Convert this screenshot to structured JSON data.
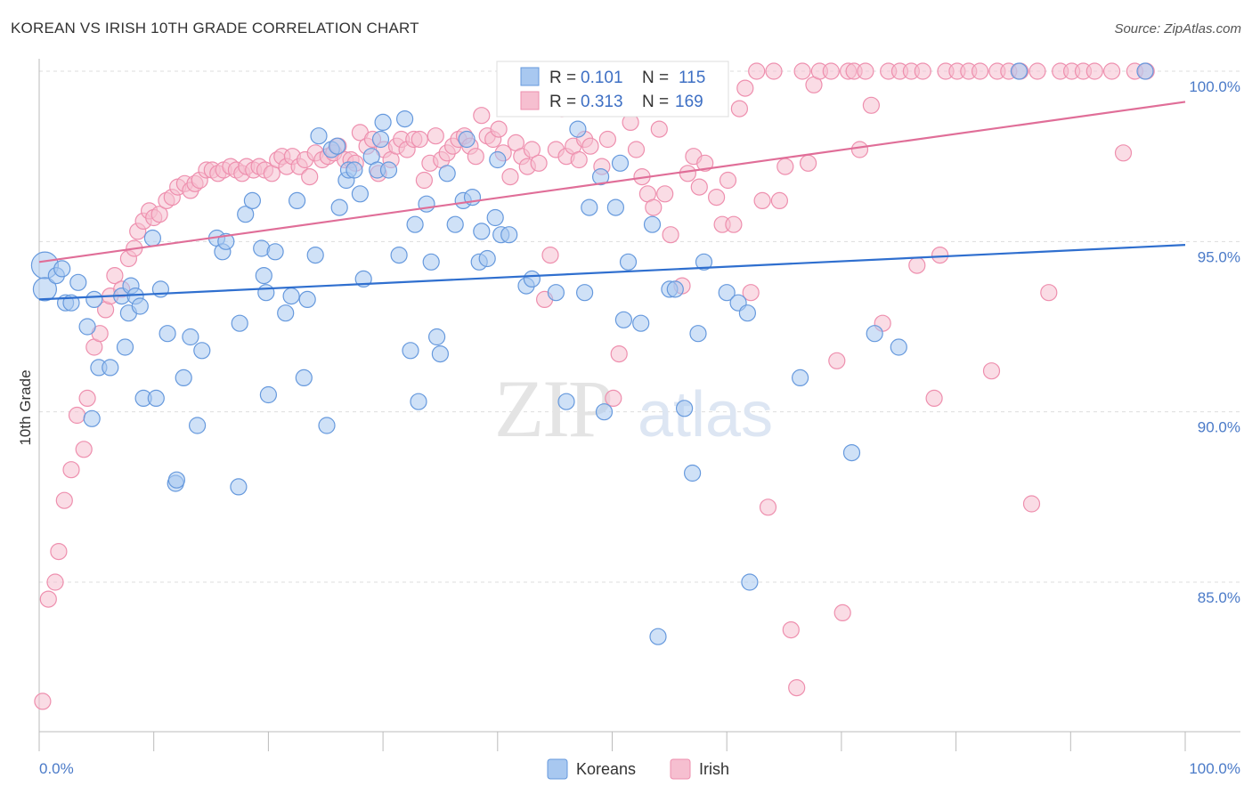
{
  "title": "KOREAN VS IRISH 10TH GRADE CORRELATION CHART",
  "source": "Source: ZipAtlas.com",
  "watermark": {
    "zip": "ZIP",
    "atlas": "atlas"
  },
  "colors": {
    "koreans_fill": "#a8c8f0",
    "koreans_stroke": "#6699dd",
    "koreans_line": "#2f6fcf",
    "irish_fill": "#f6bfd0",
    "irish_stroke": "#ee8fae",
    "irish_line": "#e06e98",
    "tick_blue": "#4a7ac8",
    "grid": "#dddddd"
  },
  "legend_box": {
    "rows": [
      {
        "r_label": "R =",
        "r_value": "0.101",
        "n_label": "N =",
        "n_value": "115"
      },
      {
        "r_label": "R =",
        "r_value": "0.313",
        "n_label": "N =",
        "n_value": "169"
      }
    ]
  },
  "chart_data": {
    "type": "scatter",
    "xlabel": "",
    "ylabel": "10th Grade",
    "xlim": [
      0,
      100
    ],
    "ylim": [
      80.5,
      100.8
    ],
    "x_tick_labels": [
      "0.0%",
      "100.0%"
    ],
    "y_ticks": [
      85,
      90,
      95,
      100
    ],
    "y_tick_labels": [
      "85.0%",
      "90.0%",
      "95.0%",
      "100.0%"
    ],
    "grid": true,
    "legend": "bottom-center",
    "series": [
      {
        "name": "Koreans",
        "R": 0.101,
        "N": 115,
        "trend": {
          "x": [
            0,
            100
          ],
          "y": [
            93.3,
            94.9
          ]
        },
        "points": [
          [
            0.5,
            94.3
          ],
          [
            0.5,
            93.6
          ],
          [
            1.5,
            94.0
          ],
          [
            2,
            94.2
          ],
          [
            2.3,
            93.2
          ],
          [
            2.8,
            93.2
          ],
          [
            3.4,
            93.8
          ],
          [
            4.2,
            92.5
          ],
          [
            4.6,
            89.8
          ],
          [
            4.8,
            93.3
          ],
          [
            5.2,
            91.3
          ],
          [
            6.2,
            91.3
          ],
          [
            7.2,
            93.4
          ],
          [
            7.5,
            91.9
          ],
          [
            7.8,
            92.9
          ],
          [
            8,
            93.7
          ],
          [
            8.4,
            93.4
          ],
          [
            8.8,
            93.1
          ],
          [
            9.1,
            90.4
          ],
          [
            9.9,
            95.1
          ],
          [
            10.2,
            90.4
          ],
          [
            10.6,
            93.6
          ],
          [
            11.2,
            92.3
          ],
          [
            11.9,
            87.9
          ],
          [
            12,
            88.0
          ],
          [
            12.6,
            91.0
          ],
          [
            13.2,
            92.2
          ],
          [
            13.8,
            89.6
          ],
          [
            14.2,
            91.8
          ],
          [
            15.5,
            95.1
          ],
          [
            16.0,
            94.7
          ],
          [
            16.3,
            95.0
          ],
          [
            17.4,
            87.8
          ],
          [
            17.5,
            92.6
          ],
          [
            18.0,
            95.8
          ],
          [
            18.6,
            96.2
          ],
          [
            19.4,
            94.8
          ],
          [
            19.6,
            94.0
          ],
          [
            19.8,
            93.5
          ],
          [
            20,
            90.5
          ],
          [
            20.6,
            94.7
          ],
          [
            21.5,
            92.9
          ],
          [
            22.0,
            93.4
          ],
          [
            22.5,
            96.2
          ],
          [
            23.1,
            91.0
          ],
          [
            23.4,
            93.3
          ],
          [
            24.1,
            94.6
          ],
          [
            24.4,
            98.1
          ],
          [
            25.1,
            89.6
          ],
          [
            25.5,
            97.7
          ],
          [
            26,
            97.8
          ],
          [
            26.2,
            96.0
          ],
          [
            26.8,
            96.8
          ],
          [
            27.0,
            97.1
          ],
          [
            27.5,
            97.1
          ],
          [
            28.0,
            96.4
          ],
          [
            28.3,
            93.9
          ],
          [
            29.0,
            97.5
          ],
          [
            29.5,
            97.1
          ],
          [
            29.8,
            98.0
          ],
          [
            30.0,
            98.5
          ],
          [
            30.5,
            97.1
          ],
          [
            31.4,
            94.6
          ],
          [
            31.9,
            98.6
          ],
          [
            32.4,
            91.8
          ],
          [
            32.8,
            95.5
          ],
          [
            33.1,
            90.3
          ],
          [
            33.8,
            96.1
          ],
          [
            34.2,
            94.4
          ],
          [
            34.7,
            92.2
          ],
          [
            35.0,
            91.7
          ],
          [
            35.6,
            97.0
          ],
          [
            36.3,
            95.5
          ],
          [
            37.0,
            96.2
          ],
          [
            37.3,
            98.0
          ],
          [
            37.8,
            96.3
          ],
          [
            38.4,
            94.4
          ],
          [
            38.6,
            95.3
          ],
          [
            39.1,
            94.5
          ],
          [
            39.8,
            95.7
          ],
          [
            40.0,
            97.4
          ],
          [
            40.3,
            95.2
          ],
          [
            41.0,
            95.2
          ],
          [
            42.5,
            93.7
          ],
          [
            43.0,
            93.9
          ],
          [
            45.1,
            93.5
          ],
          [
            46.0,
            90.3
          ],
          [
            47.0,
            98.3
          ],
          [
            47.6,
            93.5
          ],
          [
            48.0,
            96.0
          ],
          [
            49.0,
            96.9
          ],
          [
            49.3,
            90.0
          ],
          [
            50.3,
            96.0
          ],
          [
            50.7,
            97.3
          ],
          [
            51.0,
            92.7
          ],
          [
            51.4,
            94.4
          ],
          [
            52.5,
            92.6
          ],
          [
            53.5,
            95.5
          ],
          [
            54.0,
            83.4
          ],
          [
            55,
            93.6
          ],
          [
            55.5,
            93.6
          ],
          [
            56.3,
            90.1
          ],
          [
            57,
            88.2
          ],
          [
            57.5,
            92.3
          ],
          [
            58,
            94.4
          ],
          [
            60,
            93.5
          ],
          [
            61,
            93.2
          ],
          [
            61.8,
            92.9
          ],
          [
            62.0,
            85.0
          ],
          [
            66.4,
            91.0
          ],
          [
            70.9,
            88.8
          ],
          [
            72.9,
            92.3
          ],
          [
            75.0,
            91.9
          ],
          [
            85.5,
            100.0
          ],
          [
            96.5,
            100.0
          ]
        ]
      },
      {
        "name": "Irish",
        "R": 0.313,
        "N": 169,
        "trend": {
          "x": [
            0,
            100
          ],
          "y": [
            94.4,
            99.1
          ]
        },
        "points": [
          [
            0.3,
            81.5
          ],
          [
            0.8,
            84.5
          ],
          [
            1.4,
            85.0
          ],
          [
            1.7,
            85.9
          ],
          [
            2.2,
            87.4
          ],
          [
            2.8,
            88.3
          ],
          [
            3.3,
            89.9
          ],
          [
            3.9,
            88.9
          ],
          [
            4.2,
            90.4
          ],
          [
            4.8,
            91.9
          ],
          [
            5.3,
            92.3
          ],
          [
            5.8,
            93.0
          ],
          [
            6.2,
            93.4
          ],
          [
            6.6,
            94.0
          ],
          [
            7.2,
            93.6
          ],
          [
            7.8,
            94.5
          ],
          [
            8.3,
            94.8
          ],
          [
            8.6,
            95.3
          ],
          [
            9.1,
            95.6
          ],
          [
            9.6,
            95.9
          ],
          [
            10.0,
            95.7
          ],
          [
            10.5,
            95.8
          ],
          [
            11.1,
            96.2
          ],
          [
            11.6,
            96.3
          ],
          [
            12.1,
            96.6
          ],
          [
            12.7,
            96.7
          ],
          [
            13.2,
            96.5
          ],
          [
            13.6,
            96.7
          ],
          [
            14.0,
            96.8
          ],
          [
            14.6,
            97.1
          ],
          [
            15.1,
            97.1
          ],
          [
            15.6,
            97.0
          ],
          [
            16.1,
            97.1
          ],
          [
            16.7,
            97.2
          ],
          [
            17.2,
            97.1
          ],
          [
            17.7,
            97.0
          ],
          [
            18.1,
            97.2
          ],
          [
            18.7,
            97.1
          ],
          [
            19.2,
            97.2
          ],
          [
            19.7,
            97.1
          ],
          [
            20.3,
            97.0
          ],
          [
            20.8,
            97.4
          ],
          [
            21.2,
            97.5
          ],
          [
            21.6,
            97.2
          ],
          [
            22.1,
            97.5
          ],
          [
            22.7,
            97.2
          ],
          [
            23.2,
            97.4
          ],
          [
            23.6,
            96.9
          ],
          [
            24.1,
            97.6
          ],
          [
            24.7,
            97.4
          ],
          [
            25.2,
            97.5
          ],
          [
            25.7,
            97.6
          ],
          [
            26.1,
            97.8
          ],
          [
            26.7,
            97.4
          ],
          [
            27.2,
            97.4
          ],
          [
            27.6,
            97.3
          ],
          [
            28.0,
            98.2
          ],
          [
            28.6,
            97.8
          ],
          [
            29.1,
            98.0
          ],
          [
            29.6,
            97.0
          ],
          [
            30.1,
            97.7
          ],
          [
            30.7,
            97.4
          ],
          [
            31.2,
            97.8
          ],
          [
            31.6,
            98.0
          ],
          [
            32.1,
            97.7
          ],
          [
            32.7,
            98.0
          ],
          [
            33.2,
            98.0
          ],
          [
            33.6,
            96.8
          ],
          [
            34.1,
            97.3
          ],
          [
            34.6,
            98.1
          ],
          [
            35.1,
            97.4
          ],
          [
            35.6,
            97.6
          ],
          [
            36.1,
            97.8
          ],
          [
            36.6,
            98.0
          ],
          [
            37.1,
            98.1
          ],
          [
            37.6,
            97.8
          ],
          [
            38.1,
            97.5
          ],
          [
            38.6,
            98.7
          ],
          [
            39.1,
            98.1
          ],
          [
            39.6,
            98.0
          ],
          [
            40.1,
            98.3
          ],
          [
            40.5,
            97.6
          ],
          [
            41.1,
            96.9
          ],
          [
            41.6,
            97.9
          ],
          [
            42.1,
            97.5
          ],
          [
            42.6,
            97.2
          ],
          [
            43.0,
            97.7
          ],
          [
            43.6,
            97.3
          ],
          [
            44.1,
            93.3
          ],
          [
            44.6,
            94.6
          ],
          [
            45.1,
            97.7
          ],
          [
            45.6,
            98.9
          ],
          [
            46.0,
            97.5
          ],
          [
            46.6,
            97.8
          ],
          [
            47.1,
            97.4
          ],
          [
            47.6,
            98.0
          ],
          [
            48.1,
            97.8
          ],
          [
            48.6,
            99.2
          ],
          [
            49.1,
            97.2
          ],
          [
            49.6,
            98.0
          ],
          [
            50.1,
            90.4
          ],
          [
            50.6,
            91.7
          ],
          [
            51.1,
            99.0
          ],
          [
            51.6,
            98.5
          ],
          [
            52.1,
            97.7
          ],
          [
            52.6,
            96.9
          ],
          [
            53.1,
            96.4
          ],
          [
            53.6,
            96.0
          ],
          [
            54.1,
            98.3
          ],
          [
            54.6,
            96.4
          ],
          [
            55.1,
            95.2
          ],
          [
            55.6,
            99.3
          ],
          [
            56.1,
            93.7
          ],
          [
            56.6,
            97.0
          ],
          [
            57.1,
            97.5
          ],
          [
            57.6,
            96.6
          ],
          [
            58.1,
            97.3
          ],
          [
            59.1,
            96.3
          ],
          [
            59.6,
            95.5
          ],
          [
            60.1,
            96.8
          ],
          [
            60.6,
            95.5
          ],
          [
            61.1,
            98.9
          ],
          [
            61.6,
            99.5
          ],
          [
            62.1,
            93.5
          ],
          [
            62.6,
            100.0
          ],
          [
            63.1,
            96.2
          ],
          [
            63.6,
            87.2
          ],
          [
            64.1,
            100.0
          ],
          [
            64.6,
            96.2
          ],
          [
            65.1,
            97.2
          ],
          [
            65.6,
            83.6
          ],
          [
            66.1,
            81.9
          ],
          [
            66.6,
            100.0
          ],
          [
            67.1,
            97.3
          ],
          [
            67.6,
            99.6
          ],
          [
            68.1,
            100.0
          ],
          [
            69.1,
            100.0
          ],
          [
            69.6,
            91.5
          ],
          [
            70.1,
            84.1
          ],
          [
            70.6,
            100.0
          ],
          [
            71.1,
            100.0
          ],
          [
            71.6,
            97.7
          ],
          [
            72.1,
            100.0
          ],
          [
            72.6,
            99.0
          ],
          [
            73.6,
            92.6
          ],
          [
            74.1,
            100.0
          ],
          [
            75.1,
            100.0
          ],
          [
            76.1,
            100.0
          ],
          [
            76.6,
            94.3
          ],
          [
            77.1,
            100.0
          ],
          [
            78.1,
            90.4
          ],
          [
            78.6,
            94.6
          ],
          [
            79.1,
            100.0
          ],
          [
            80.1,
            100.0
          ],
          [
            81.1,
            100.0
          ],
          [
            82.1,
            100.0
          ],
          [
            83.1,
            91.2
          ],
          [
            83.6,
            100.0
          ],
          [
            84.6,
            100.0
          ],
          [
            85.6,
            100.0
          ],
          [
            86.6,
            87.3
          ],
          [
            87.1,
            100.0
          ],
          [
            88.1,
            93.5
          ],
          [
            89.1,
            100.0
          ],
          [
            90.1,
            100.0
          ],
          [
            91.1,
            100.0
          ],
          [
            92.1,
            100.0
          ],
          [
            93.6,
            100.0
          ],
          [
            94.6,
            97.6
          ],
          [
            95.6,
            100.0
          ],
          [
            96.6,
            100.0
          ]
        ]
      }
    ]
  }
}
